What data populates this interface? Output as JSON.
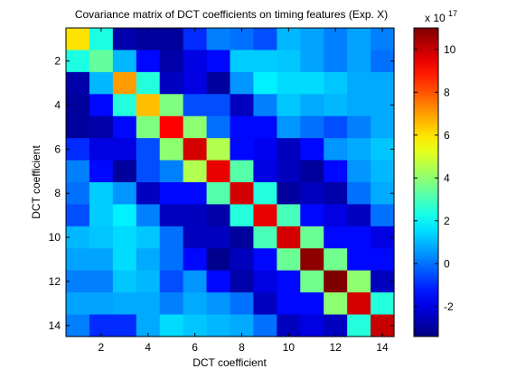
{
  "chart_data": {
    "type": "heatmap",
    "title": "Covariance matrix of DCT coefficients on timing features (Exp. X)",
    "xlabel": "DCT coefficient",
    "ylabel": "DCT coefficient",
    "x_ticks": [
      "2",
      "4",
      "6",
      "8",
      "10",
      "12",
      "14"
    ],
    "y_ticks": [
      "2",
      "4",
      "6",
      "8",
      "10",
      "12",
      "14"
    ],
    "x_tick_values": [
      2,
      4,
      6,
      8,
      10,
      12,
      14
    ],
    "y_tick_values": [
      2,
      4,
      6,
      8,
      10,
      12,
      14
    ],
    "x_range": [
      0.5,
      14.5
    ],
    "y_range": [
      0.5,
      14.5
    ],
    "y_reversed": true,
    "colormap": "jet",
    "colorbar": {
      "exponent_label": "x 10",
      "exponent_power": "17",
      "ticks": [
        "10",
        "8",
        "6",
        "4",
        "2",
        "0",
        "-2"
      ],
      "tick_values": [
        10,
        8,
        6,
        4,
        2,
        0,
        -2
      ],
      "range": [
        -3.4,
        11.0
      ]
    },
    "matrix": [
      [
        6.0,
        2.4,
        -2.8,
        -3.0,
        -3.0,
        -1.0,
        0.2,
        0.0,
        -0.5,
        1.0,
        0.7,
        0.2,
        0.7,
        0.2
      ],
      [
        2.4,
        3.4,
        1.0,
        -1.5,
        -2.8,
        -2.0,
        -1.5,
        1.3,
        1.3,
        1.2,
        0.7,
        0.2,
        0.7,
        0.0
      ],
      [
        -2.8,
        1.0,
        7.0,
        2.5,
        -2.5,
        -2.0,
        -3.0,
        0.5,
        1.8,
        1.5,
        1.5,
        1.2,
        0.8,
        0.8
      ],
      [
        -3.0,
        -1.5,
        2.5,
        6.5,
        3.8,
        -0.5,
        -0.5,
        -2.5,
        0.2,
        1.2,
        0.8,
        1.0,
        0.8,
        0.8
      ],
      [
        -3.0,
        -2.8,
        -1.5,
        3.8,
        9.2,
        4.0,
        0.0,
        -1.5,
        -1.5,
        0.5,
        0.0,
        -0.5,
        0.2,
        0.8
      ],
      [
        -1.0,
        -2.0,
        -2.0,
        -0.5,
        4.0,
        9.8,
        4.5,
        -1.5,
        -1.8,
        -2.5,
        -1.5,
        0.5,
        0.8,
        1.2
      ],
      [
        0.2,
        -1.5,
        -3.0,
        -0.5,
        0.2,
        4.5,
        9.5,
        3.2,
        -2.0,
        -2.5,
        -3.0,
        -1.5,
        0.5,
        1.0
      ],
      [
        0.0,
        1.3,
        0.5,
        -2.5,
        -1.5,
        -1.5,
        3.2,
        9.8,
        2.5,
        -3.0,
        -2.5,
        -2.8,
        0.0,
        0.8
      ],
      [
        -0.5,
        1.3,
        1.8,
        0.2,
        -2.5,
        -2.5,
        -2.8,
        2.5,
        9.5,
        3.0,
        -1.5,
        -2.0,
        -2.5,
        0.0
      ],
      [
        1.0,
        1.2,
        1.5,
        1.2,
        0.0,
        -2.5,
        -2.5,
        -3.0,
        3.0,
        9.8,
        3.5,
        -1.5,
        -1.5,
        -2.0
      ],
      [
        0.7,
        0.7,
        1.5,
        0.8,
        0.0,
        -1.5,
        -3.2,
        -2.5,
        -1.5,
        3.5,
        10.8,
        3.6,
        -1.5,
        -1.5
      ],
      [
        0.2,
        0.2,
        1.2,
        1.0,
        -0.5,
        0.5,
        -1.5,
        -2.8,
        -2.0,
        -1.5,
        3.6,
        11.0,
        4.0,
        -2.5
      ],
      [
        0.7,
        0.7,
        0.8,
        0.8,
        0.2,
        0.8,
        0.5,
        0.0,
        -2.5,
        -1.5,
        -1.5,
        4.0,
        9.8,
        2.5
      ],
      [
        0.2,
        -1.0,
        -1.0,
        0.8,
        1.5,
        1.2,
        1.0,
        0.8,
        0.0,
        -2.5,
        -2.0,
        -2.5,
        2.5,
        10.0
      ]
    ]
  }
}
